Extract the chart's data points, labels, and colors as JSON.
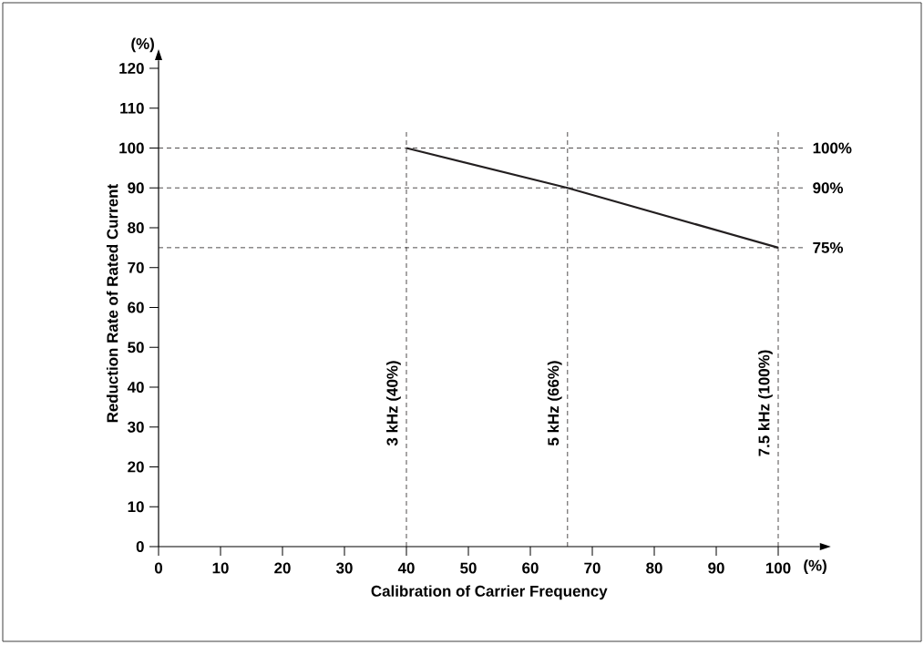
{
  "chart_data": {
    "type": "line",
    "xlabel": "Calibration of Carrier Frequency",
    "ylabel": "Reduction Rate of Rated Current",
    "x": [
      40,
      66,
      100
    ],
    "series": [
      {
        "color": "#231f20",
        "values": [
          100,
          90,
          75
        ]
      }
    ],
    "xlim": [
      0,
      106.7
    ],
    "ylim": [
      0,
      122
    ],
    "xticks": [
      0,
      10,
      20,
      30,
      40,
      50,
      60,
      70,
      80,
      90,
      100
    ],
    "yticks": [
      0,
      10,
      20,
      30,
      40,
      50,
      60,
      70,
      80,
      90,
      100,
      110,
      120
    ],
    "ref_lines": [
      {
        "axis": "y",
        "value": 100,
        "label": "100%",
        "color": "#231f20",
        "line_style": "dashed"
      },
      {
        "axis": "y",
        "value": 90,
        "label": "90%",
        "color": "#231f20",
        "line_style": "dashed"
      },
      {
        "axis": "y",
        "value": 75,
        "label": "75%",
        "color": "#231f20",
        "line_style": "dashed"
      },
      {
        "axis": "x",
        "value": 40,
        "label": "3 kHz (40%)",
        "color": "#231f20",
        "line_style": "dashed"
      },
      {
        "axis": "x",
        "value": 66,
        "label": "5 kHz (66%)",
        "color": "#231f20",
        "line_style": "dashed"
      },
      {
        "axis": "x",
        "value": 100,
        "label": "7.5 kHz (100%)",
        "color": "#231f20",
        "line_style": "dashed"
      }
    ],
    "annotations": [
      "(%)",
      "(%)"
    ],
    "grid": false,
    "marker": "none",
    "line_style": "solid"
  }
}
